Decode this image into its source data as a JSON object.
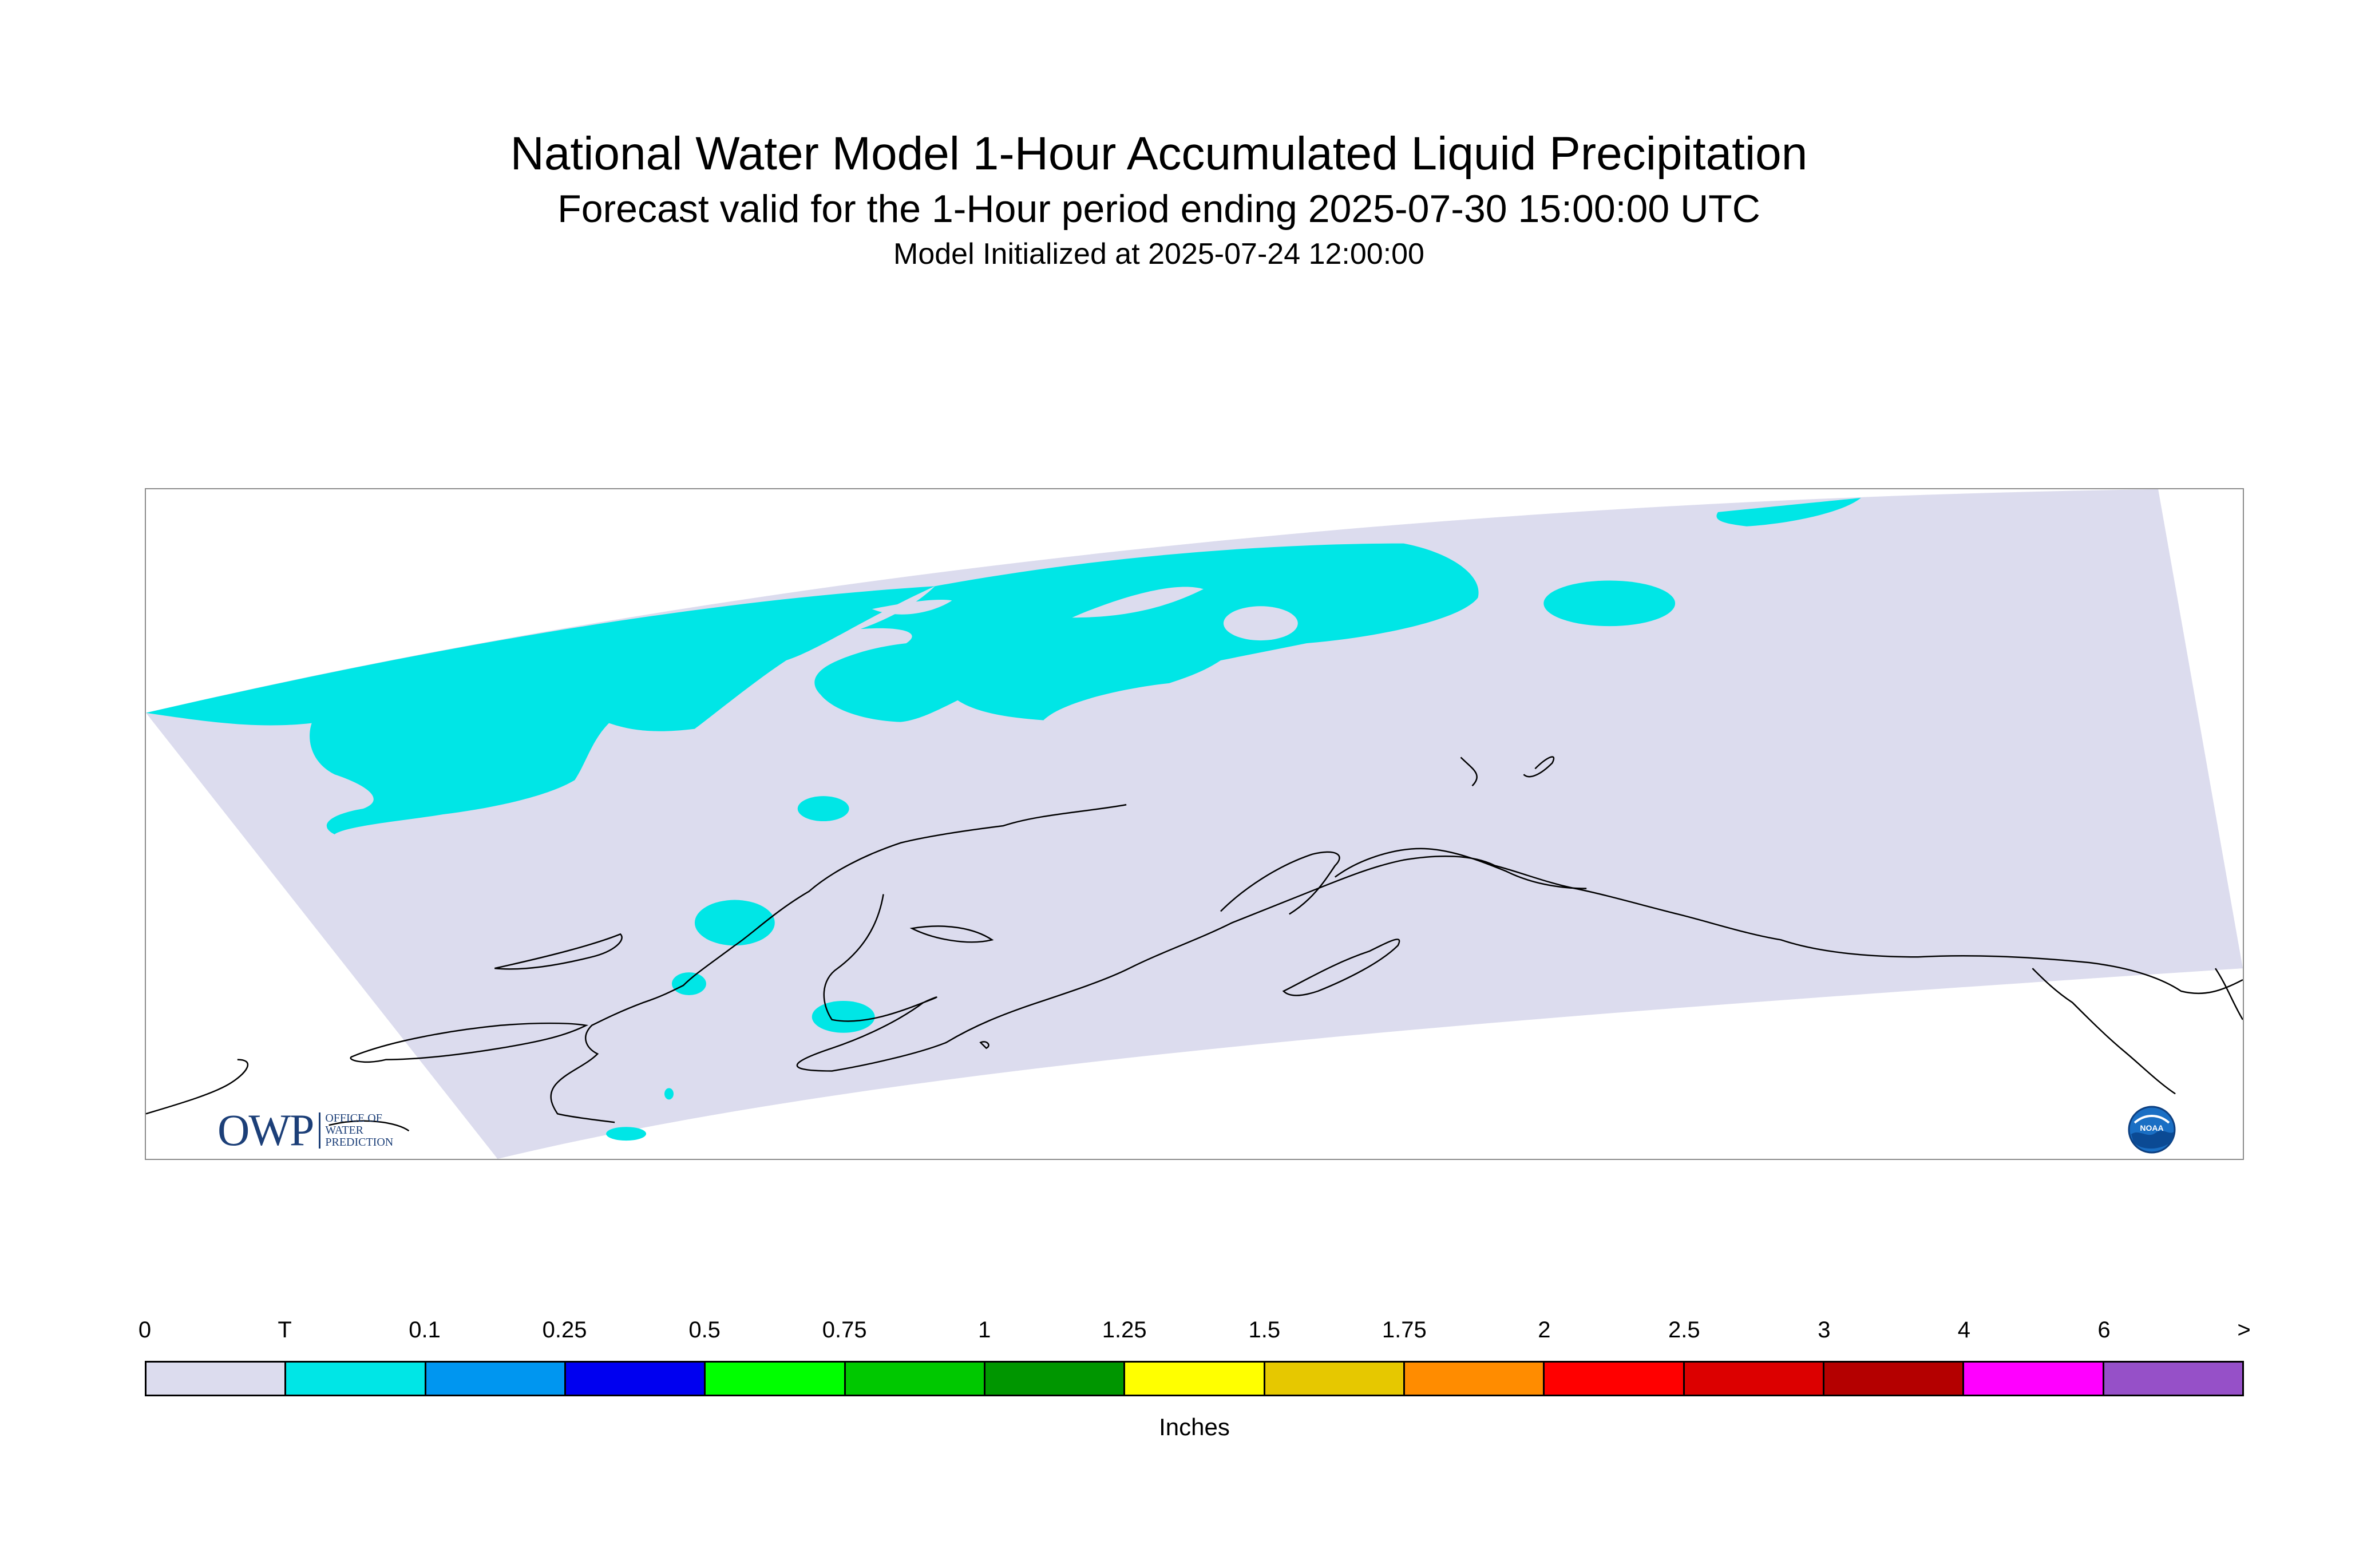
{
  "header": {
    "title": "National Water Model 1-Hour Accumulated Liquid Precipitation",
    "subtitle": "Forecast valid for the 1-Hour period ending 2025-07-30 15:00:00 UTC",
    "init_line": "Model Initialized at 2025-07-24 12:00:00"
  },
  "logos": {
    "owp": {
      "letters": "OWP",
      "line1": "OFFICE OF",
      "line2": "WATER",
      "line3": "PREDICTION"
    },
    "noaa": {
      "text": "NOAA"
    }
  },
  "map": {
    "domain_color": "#dcdcee",
    "precip_color": "#00e6e6",
    "coast_color": "#000000",
    "frame_color": "#8c8c8c"
  },
  "legend": {
    "tick_labels": [
      "0",
      "T",
      "0.1",
      "0.25",
      "0.5",
      "0.75",
      "1",
      "1.25",
      "1.5",
      "1.75",
      "2",
      "2.5",
      "3",
      "4",
      "6",
      ">"
    ],
    "colors": [
      "#dcdcee",
      "#00e6e6",
      "#0096f0",
      "#0000f0",
      "#00ff00",
      "#00c800",
      "#009600",
      "#ffff00",
      "#e6c800",
      "#ff8c00",
      "#ff0000",
      "#dc0000",
      "#b40000",
      "#ff00ff",
      "#9650c8"
    ],
    "units": "Inches"
  }
}
